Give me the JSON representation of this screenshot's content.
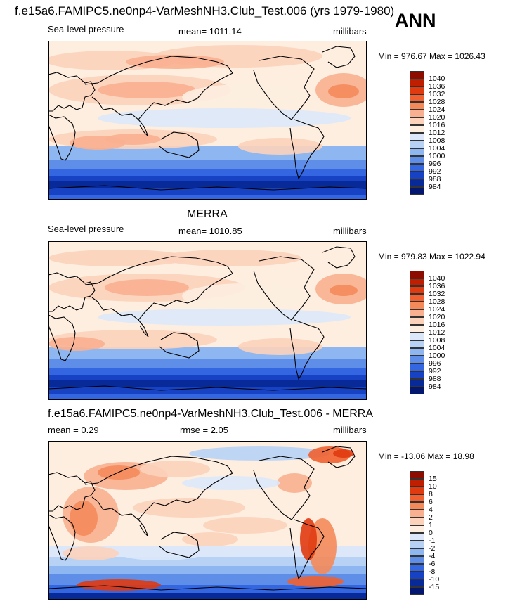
{
  "header": {
    "title": "f.e15a6.FAMIPC5.ne0np4-VarMeshNH3.Club_Test.006 (yrs 1979-1980)",
    "season": "ANN"
  },
  "panels": [
    {
      "title": "",
      "left_label": "Sea-level pressure",
      "center_label": "mean= 1011.14",
      "right_label": "millibars",
      "minmax": "Min = 976.67 Max = 1026.43"
    },
    {
      "title": "MERRA",
      "left_label": "Sea-level pressure",
      "center_label": "mean= 1010.85",
      "right_label": "millibars",
      "minmax": "Min = 979.83 Max = 1022.94"
    },
    {
      "title": "f.e15a6.FAMIPC5.ne0np4-VarMeshNH3.Club_Test.006 - MERRA",
      "left_label": "mean =   0.29",
      "center_label": "rmse =   2.05",
      "right_label": "millibars",
      "minmax": "Min = -13.06 Max =  18.98"
    }
  ],
  "colorbars": {
    "pressure": {
      "labels": [
        "1040",
        "1036",
        "1032",
        "1028",
        "1024",
        "1020",
        "1016",
        "1012",
        "1008",
        "1004",
        "1000",
        "996",
        "992",
        "988",
        "984"
      ],
      "colors": [
        "#8c0c00",
        "#c01e00",
        "#e03a10",
        "#f06030",
        "#f48a5a",
        "#f9b090",
        "#fcd2bb",
        "#fdeee0",
        "#dce8fa",
        "#b8d2f6",
        "#8eb6f0",
        "#5f8ee8",
        "#3366e0",
        "#1742c4",
        "#082a99",
        "#031670"
      ]
    },
    "difference": {
      "labels": [
        "15",
        "10",
        "8",
        "6",
        "4",
        "2",
        "1",
        "0",
        "-1",
        "-2",
        "-4",
        "-6",
        "-8",
        "-10",
        "-15"
      ],
      "colors": [
        "#8c0c00",
        "#c01e00",
        "#e03a10",
        "#f06030",
        "#f48a5a",
        "#f9b090",
        "#fcd2bb",
        "#fdeee0",
        "#dce8fa",
        "#b8d2f6",
        "#8eb6f0",
        "#5f8ee8",
        "#3366e0",
        "#1742c4",
        "#082a99",
        "#031670"
      ]
    }
  }
}
